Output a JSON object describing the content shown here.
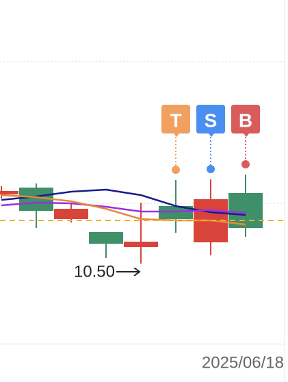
{
  "chart_data": {
    "type": "candlestick",
    "categories": [
      null,
      null,
      null,
      null,
      null,
      null,
      null,
      "2025/06/18"
    ],
    "open": [
      10.924,
      10.808,
      10.82,
      10.616,
      10.628,
      10.76,
      10.876,
      10.708
    ],
    "high": [
      10.952,
      10.968,
      10.856,
      10.684,
      10.856,
      10.988,
      10.992,
      11.02
    ],
    "low": [
      10.88,
      10.708,
      10.74,
      10.532,
      10.5,
      10.68,
      10.548,
      10.656
    ],
    "close": [
      10.904,
      10.944,
      10.76,
      10.684,
      10.596,
      10.836,
      10.624,
      10.912
    ],
    "up_color": "#3f8f68",
    "down_color": "#d9443a",
    "lines": [
      {
        "color": "#1a1a8c",
        "values": [
          10.872,
          10.892,
          10.92,
          10.932,
          10.9,
          10.836,
          10.8,
          10.784
        ]
      },
      {
        "color": "#9b30e0",
        "values": [
          10.84,
          10.856,
          10.852,
          10.832,
          10.804,
          10.804,
          10.812,
          10.796
        ]
      },
      {
        "color": "#e8893a",
        "values": [
          10.9,
          10.888,
          10.864,
          10.82,
          10.76,
          10.752,
          10.752,
          10.728
        ]
      }
    ],
    "reference_line": {
      "value": 10.752,
      "color": "#f0b030"
    },
    "gridlines": [
      11.68,
      10.852
    ],
    "min_label": "10.50",
    "signals": [
      null,
      null,
      null,
      null,
      null,
      {
        "label": "T",
        "color": "#f2a060"
      },
      {
        "label": "S",
        "color": "#4a8ff0"
      },
      {
        "label": "B",
        "color": "#d95c5c"
      }
    ],
    "ylim": [
      10.04,
      12.04
    ]
  }
}
